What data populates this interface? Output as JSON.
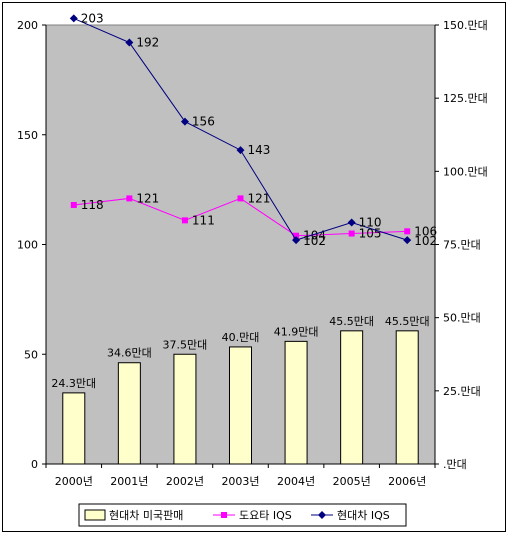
{
  "chart_data": {
    "type": "bar-line-combo",
    "categories": [
      "2000년",
      "2001년",
      "2002년",
      "2003년",
      "2004년",
      "2005년",
      "2006년"
    ],
    "left_axis": {
      "ylim": [
        0,
        200
      ],
      "ticks": [
        "0",
        "50",
        "100",
        "150",
        "200"
      ]
    },
    "right_axis": {
      "ylim": [
        0,
        150
      ],
      "ticks": [
        ".만대",
        "25.만대",
        "50.만대",
        "75.만대",
        "100.만대",
        "125.만대",
        "150.만대"
      ]
    },
    "bar_series": {
      "name": "현대차 미국판매",
      "axis": "right",
      "values": [
        24.3,
        34.6,
        37.5,
        40.0,
        41.9,
        45.5,
        45.5
      ],
      "labels": [
        "24.3만대",
        "34.6만대",
        "37.5만대",
        "40.만대",
        "41.9만대",
        "45.5만대",
        "45.5만대"
      ],
      "color": "#ffffcc"
    },
    "line_series": [
      {
        "name": "도요타 IQS",
        "axis": "left",
        "values": [
          118,
          121,
          111,
          121,
          104,
          105,
          106
        ],
        "labels": [
          "118",
          "121",
          "111",
          "121",
          "104",
          "105",
          "106"
        ],
        "color": "#ff00ff",
        "marker": "square"
      },
      {
        "name": "현대차 IQS",
        "axis": "left",
        "values": [
          203,
          192,
          156,
          143,
          102,
          110,
          102
        ],
        "labels": [
          "203",
          "192",
          "156",
          "143",
          "102",
          "110",
          "102"
        ],
        "color": "#000080",
        "marker": "diamond"
      }
    ],
    "plot_background": "#c0c0c0",
    "grid": false,
    "legend": "bottom"
  }
}
